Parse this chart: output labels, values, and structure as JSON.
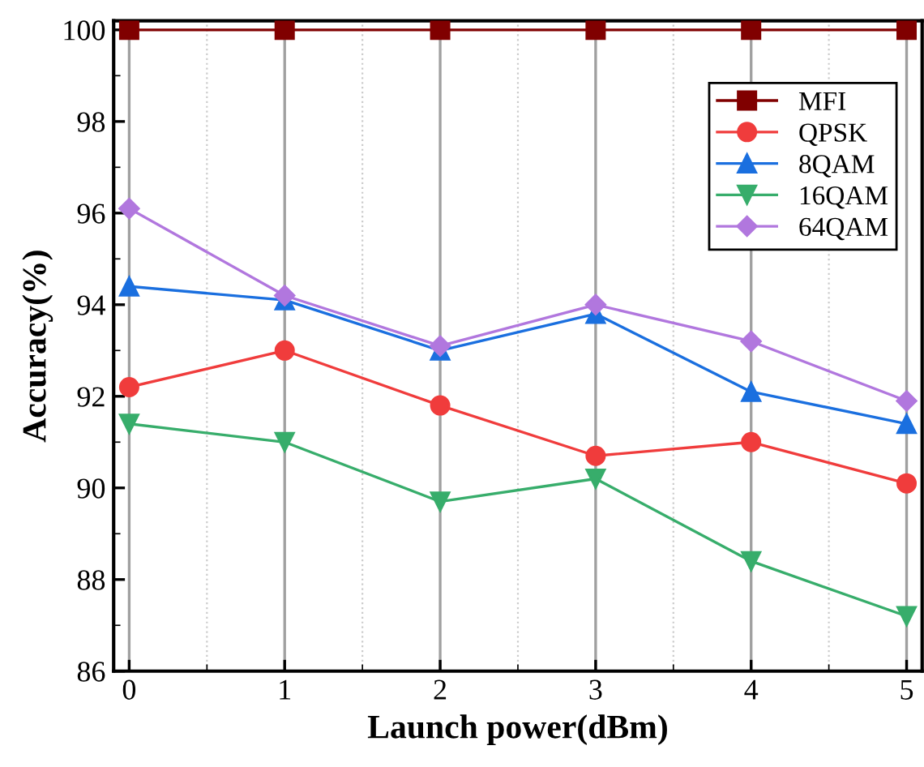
{
  "chart_data": {
    "type": "line",
    "xlabel": "Launch power(dBm)",
    "ylabel": "Accuracy(%)",
    "x": [
      0,
      1,
      2,
      3,
      4,
      5
    ],
    "xlim": [
      -0.1,
      5.1
    ],
    "xticks": [
      0,
      1,
      2,
      3,
      4,
      5
    ],
    "ylim": [
      86,
      100.2
    ],
    "yticks": [
      86,
      88,
      90,
      92,
      94,
      96,
      98,
      100
    ],
    "grid": "x",
    "legend": "top right",
    "line_style": "solid",
    "series": [
      {
        "name": "MFI",
        "color": "#800000",
        "marker": "square",
        "values": [
          100,
          100,
          100,
          100,
          100,
          100
        ]
      },
      {
        "name": "QPSK",
        "color": "#f03c3c",
        "marker": "circle",
        "values": [
          92.2,
          93.0,
          91.8,
          90.7,
          91.0,
          90.1
        ]
      },
      {
        "name": "8QAM",
        "color": "#1a6fdf",
        "marker": "triangle",
        "values": [
          94.4,
          94.1,
          93.0,
          93.8,
          92.1,
          91.4
        ]
      },
      {
        "name": "16QAM",
        "color": "#37ad6b",
        "marker": "triangle_down",
        "values": [
          91.4,
          91.0,
          89.7,
          90.2,
          88.4,
          87.2
        ]
      },
      {
        "name": "64QAM",
        "color": "#b177de",
        "marker": "diamond",
        "values": [
          96.1,
          94.2,
          93.1,
          94.0,
          93.2,
          91.9
        ]
      }
    ]
  }
}
